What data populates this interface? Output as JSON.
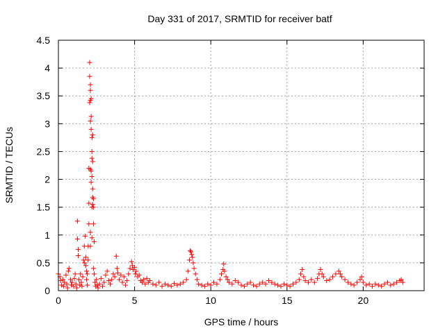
{
  "chart_data": {
    "type": "scatter",
    "title": "Day 331 of 2017, SRMTID for receiver batf",
    "xlabel": "GPS time / hours",
    "ylabel": "SRMTID / TECUs",
    "xlim": [
      0,
      24
    ],
    "ylim": [
      0,
      4.5
    ],
    "xticks": [
      0,
      5,
      10,
      15,
      20
    ],
    "xtick_labels": [
      "0",
      "5",
      "10",
      "15",
      "20"
    ],
    "yticks": [
      0,
      0.5,
      1,
      1.5,
      2,
      2.5,
      3,
      3.5,
      4,
      4.5
    ],
    "ytick_labels": [
      "0",
      "0.5",
      "1",
      "1.5",
      "2",
      "2.5",
      "3",
      "3.5",
      "4",
      "4.5"
    ],
    "grid": true,
    "marker": "+",
    "series": [
      {
        "name": "batf",
        "color": "#ff0000",
        "points": [
          [
            0.0,
            0.3
          ],
          [
            0.1,
            0.25
          ],
          [
            0.15,
            0.18
          ],
          [
            0.2,
            0.1
          ],
          [
            0.3,
            0.2
          ],
          [
            0.35,
            0.08
          ],
          [
            0.4,
            0.15
          ],
          [
            0.5,
            0.28
          ],
          [
            0.55,
            0.12
          ],
          [
            0.6,
            0.05
          ],
          [
            0.65,
            0.35
          ],
          [
            0.7,
            0.4
          ],
          [
            0.8,
            0.2
          ],
          [
            0.85,
            0.1
          ],
          [
            0.9,
            0.15
          ],
          [
            1.0,
            0.08
          ],
          [
            1.05,
            0.22
          ],
          [
            1.1,
            0.3
          ],
          [
            1.15,
            0.12
          ],
          [
            1.2,
            0.05
          ],
          [
            1.25,
            1.25
          ],
          [
            1.25,
            0.93
          ],
          [
            1.3,
            0.74
          ],
          [
            1.3,
            0.63
          ],
          [
            1.35,
            0.2
          ],
          [
            1.4,
            0.1
          ],
          [
            1.45,
            0.3
          ],
          [
            1.5,
            0.15
          ],
          [
            1.55,
            0.08
          ],
          [
            1.6,
            0.25
          ],
          [
            1.65,
            0.55
          ],
          [
            1.7,
            0.5
          ],
          [
            1.7,
            0.8
          ],
          [
            1.75,
            0.98
          ],
          [
            1.8,
            0.45
          ],
          [
            1.8,
            0.6
          ],
          [
            1.85,
            0.35
          ],
          [
            1.85,
            0.2
          ],
          [
            1.9,
            0.1
          ],
          [
            1.9,
            0.3
          ],
          [
            1.95,
            0.55
          ],
          [
            1.95,
            0.8
          ],
          [
            2.0,
            1.2
          ],
          [
            2.0,
            1.57
          ],
          [
            2.0,
            2.2
          ],
          [
            2.05,
            3.38
          ],
          [
            2.05,
            4.1
          ],
          [
            2.05,
            3.85
          ],
          [
            2.1,
            3.7
          ],
          [
            2.1,
            3.42
          ],
          [
            2.1,
            3.6
          ],
          [
            2.1,
            3.05
          ],
          [
            2.1,
            2.18
          ],
          [
            2.1,
            1.05
          ],
          [
            2.1,
            0.8
          ],
          [
            2.15,
            3.45
          ],
          [
            2.15,
            3.13
          ],
          [
            2.15,
            2.9
          ],
          [
            2.15,
            2.15
          ],
          [
            2.15,
            1.95
          ],
          [
            2.2,
            2.75
          ],
          [
            2.2,
            2.5
          ],
          [
            2.2,
            2.38
          ],
          [
            2.2,
            2.05
          ],
          [
            2.2,
            1.5
          ],
          [
            2.2,
            0.95
          ],
          [
            2.25,
            2.8
          ],
          [
            2.25,
            2.32
          ],
          [
            2.25,
            1.83
          ],
          [
            2.25,
            1.68
          ],
          [
            2.25,
            1.55
          ],
          [
            2.3,
            1.65
          ],
          [
            2.3,
            1.5
          ],
          [
            2.3,
            1.2
          ],
          [
            2.3,
            0.4
          ],
          [
            2.35,
            0.88
          ],
          [
            2.35,
            0.3
          ],
          [
            2.4,
            0.15
          ],
          [
            2.45,
            0.08
          ],
          [
            2.5,
            0.2
          ],
          [
            2.55,
            0.1
          ],
          [
            2.6,
            0.05
          ],
          [
            2.7,
            0.12
          ],
          [
            2.8,
            0.22
          ],
          [
            2.9,
            0.08
          ],
          [
            3.0,
            0.15
          ],
          [
            3.1,
            0.28
          ],
          [
            3.2,
            0.35
          ],
          [
            3.3,
            0.18
          ],
          [
            3.4,
            0.12
          ],
          [
            3.5,
            0.2
          ],
          [
            3.6,
            0.3
          ],
          [
            3.7,
            0.25
          ],
          [
            3.8,
            0.62
          ],
          [
            3.85,
            0.4
          ],
          [
            3.9,
            0.32
          ],
          [
            4.0,
            0.2
          ],
          [
            4.1,
            0.28
          ],
          [
            4.2,
            0.15
          ],
          [
            4.3,
            0.25
          ],
          [
            4.4,
            0.1
          ],
          [
            4.5,
            0.18
          ],
          [
            4.6,
            0.3
          ],
          [
            4.7,
            0.4
          ],
          [
            4.8,
            0.52
          ],
          [
            4.85,
            0.45
          ],
          [
            4.9,
            0.38
          ],
          [
            5.0,
            0.42
          ],
          [
            5.05,
            0.3
          ],
          [
            5.1,
            0.35
          ],
          [
            5.2,
            0.25
          ],
          [
            5.3,
            0.28
          ],
          [
            5.4,
            0.18
          ],
          [
            5.5,
            0.15
          ],
          [
            5.6,
            0.2
          ],
          [
            5.7,
            0.12
          ],
          [
            5.8,
            0.22
          ],
          [
            5.9,
            0.15
          ],
          [
            6.0,
            0.18
          ],
          [
            6.2,
            0.12
          ],
          [
            6.4,
            0.1
          ],
          [
            6.6,
            0.15
          ],
          [
            6.8,
            0.08
          ],
          [
            7.0,
            0.12
          ],
          [
            7.2,
            0.1
          ],
          [
            7.4,
            0.08
          ],
          [
            7.6,
            0.13
          ],
          [
            7.8,
            0.1
          ],
          [
            8.0,
            0.12
          ],
          [
            8.2,
            0.15
          ],
          [
            8.4,
            0.2
          ],
          [
            8.5,
            0.35
          ],
          [
            8.6,
            0.55
          ],
          [
            8.65,
            0.72
          ],
          [
            8.7,
            0.7
          ],
          [
            8.75,
            0.65
          ],
          [
            8.8,
            0.6
          ],
          [
            8.85,
            0.5
          ],
          [
            8.9,
            0.4
          ],
          [
            9.0,
            0.3
          ],
          [
            9.1,
            0.2
          ],
          [
            9.2,
            0.12
          ],
          [
            9.4,
            0.1
          ],
          [
            9.6,
            0.08
          ],
          [
            9.8,
            0.12
          ],
          [
            10.0,
            0.1
          ],
          [
            10.2,
            0.15
          ],
          [
            10.4,
            0.12
          ],
          [
            10.6,
            0.2
          ],
          [
            10.7,
            0.3
          ],
          [
            10.8,
            0.38
          ],
          [
            10.85,
            0.48
          ],
          [
            10.9,
            0.35
          ],
          [
            11.0,
            0.25
          ],
          [
            11.1,
            0.2
          ],
          [
            11.2,
            0.15
          ],
          [
            11.4,
            0.12
          ],
          [
            11.6,
            0.18
          ],
          [
            11.8,
            0.15
          ],
          [
            12.0,
            0.1
          ],
          [
            12.2,
            0.08
          ],
          [
            12.4,
            0.12
          ],
          [
            12.6,
            0.15
          ],
          [
            12.8,
            0.1
          ],
          [
            13.0,
            0.08
          ],
          [
            13.2,
            0.12
          ],
          [
            13.4,
            0.15
          ],
          [
            13.6,
            0.12
          ],
          [
            13.8,
            0.18
          ],
          [
            14.0,
            0.15
          ],
          [
            14.2,
            0.12
          ],
          [
            14.4,
            0.1
          ],
          [
            14.6,
            0.08
          ],
          [
            14.8,
            0.12
          ],
          [
            15.0,
            0.1
          ],
          [
            15.2,
            0.08
          ],
          [
            15.4,
            0.12
          ],
          [
            15.6,
            0.15
          ],
          [
            15.8,
            0.2
          ],
          [
            15.9,
            0.3
          ],
          [
            16.0,
            0.38
          ],
          [
            16.1,
            0.25
          ],
          [
            16.2,
            0.18
          ],
          [
            16.4,
            0.15
          ],
          [
            16.6,
            0.2
          ],
          [
            16.8,
            0.15
          ],
          [
            17.0,
            0.22
          ],
          [
            17.1,
            0.3
          ],
          [
            17.2,
            0.38
          ],
          [
            17.3,
            0.3
          ],
          [
            17.4,
            0.25
          ],
          [
            17.6,
            0.18
          ],
          [
            17.8,
            0.2
          ],
          [
            18.0,
            0.25
          ],
          [
            18.2,
            0.3
          ],
          [
            18.4,
            0.35
          ],
          [
            18.5,
            0.3
          ],
          [
            18.6,
            0.25
          ],
          [
            18.8,
            0.2
          ],
          [
            19.0,
            0.15
          ],
          [
            19.2,
            0.12
          ],
          [
            19.4,
            0.1
          ],
          [
            19.6,
            0.15
          ],
          [
            19.8,
            0.2
          ],
          [
            19.9,
            0.25
          ],
          [
            20.0,
            0.15
          ],
          [
            20.2,
            0.1
          ],
          [
            20.4,
            0.12
          ],
          [
            20.6,
            0.08
          ],
          [
            20.8,
            0.12
          ],
          [
            21.0,
            0.1
          ],
          [
            21.2,
            0.08
          ],
          [
            21.4,
            0.12
          ],
          [
            21.6,
            0.15
          ],
          [
            21.8,
            0.1
          ],
          [
            22.0,
            0.12
          ],
          [
            22.2,
            0.15
          ],
          [
            22.4,
            0.18
          ],
          [
            22.5,
            0.2
          ],
          [
            22.6,
            0.15
          ]
        ]
      }
    ]
  }
}
